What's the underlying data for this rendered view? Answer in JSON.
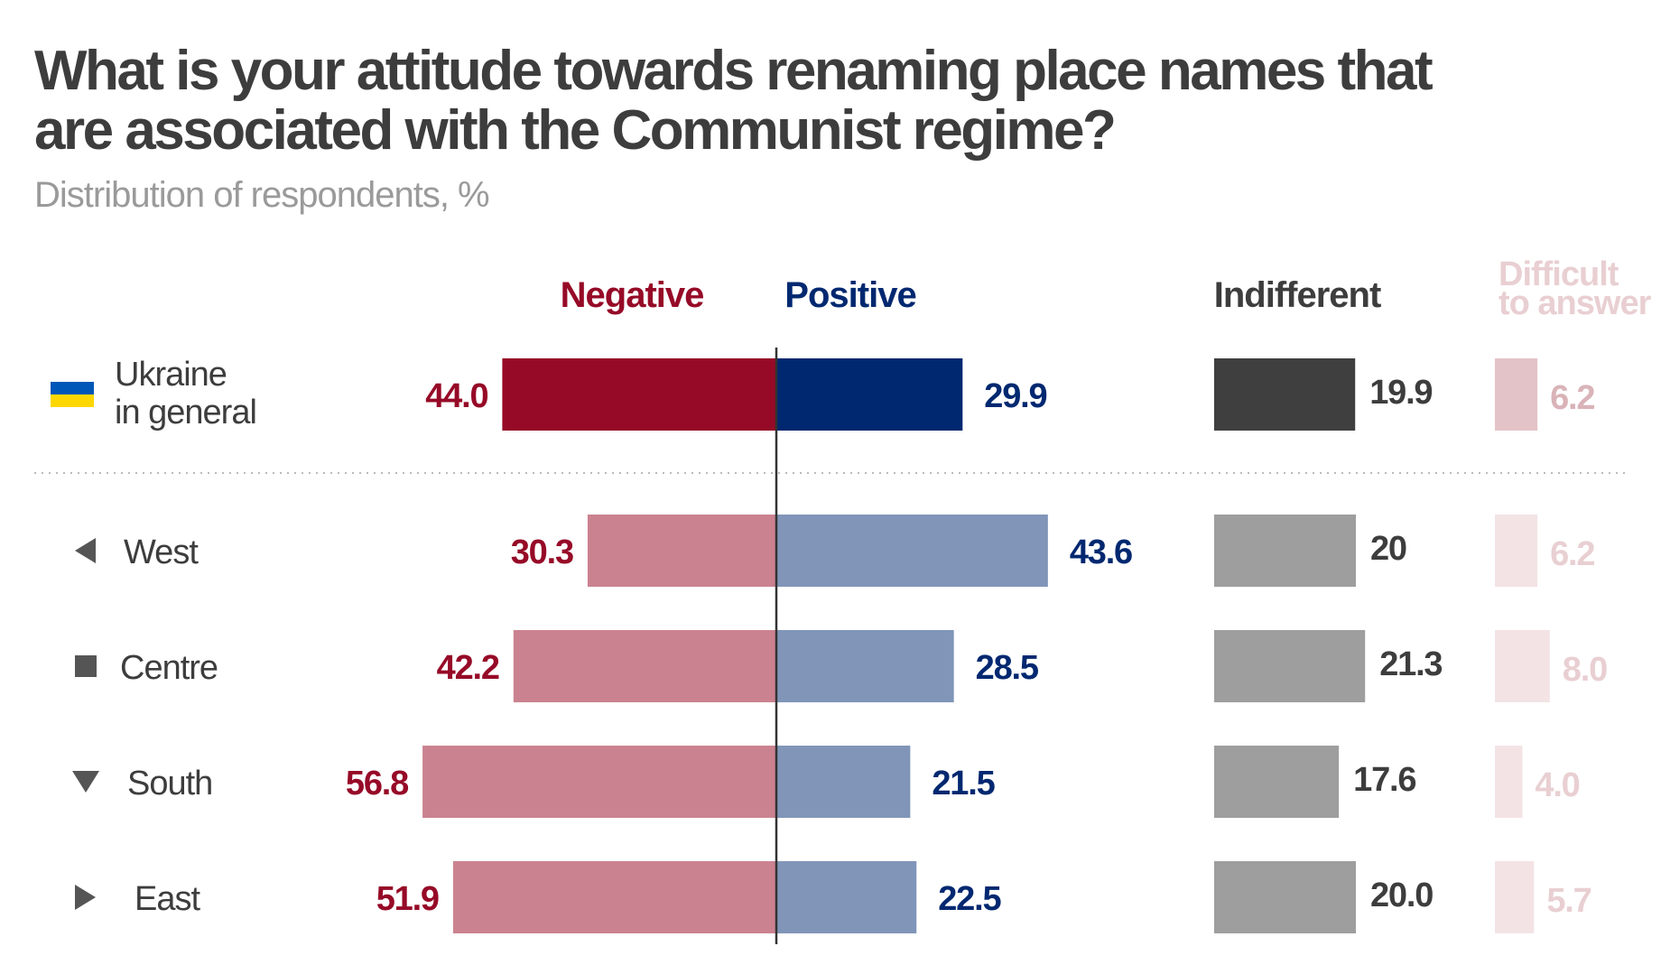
{
  "title": "What is your attitude towards renaming place names that are associated with the Communist regime?",
  "subtitle": "Distribution of respondents, %",
  "chart_data": {
    "type": "bar",
    "title": "What is your attitude towards renaming place names that are associated with the Communist regime?",
    "subtitle": "Distribution of respondents, %",
    "columns": {
      "negative": "Negative",
      "positive": "Positive",
      "indifferent": "Indifferent",
      "difficult_line1": "Difficult",
      "difficult_line2": "to answer"
    },
    "categories": [
      "Ukraine in general",
      "West",
      "Centre",
      "South",
      "East"
    ],
    "category_lines": [
      [
        "Ukraine",
        "in general"
      ],
      [
        "West"
      ],
      [
        "Centre"
      ],
      [
        "South"
      ],
      [
        "East"
      ]
    ],
    "category_icons": [
      "ukraine-flag-icon",
      "triangle-left-icon",
      "square-icon",
      "triangle-down-icon",
      "triangle-right-icon"
    ],
    "series": [
      {
        "name": "Negative",
        "values": [
          44.0,
          30.3,
          42.2,
          56.8,
          51.9
        ],
        "labels": [
          "44.0",
          "30.3",
          "42.2",
          "56.8",
          "51.9"
        ]
      },
      {
        "name": "Positive",
        "values": [
          29.9,
          43.6,
          28.5,
          21.5,
          22.5
        ],
        "labels": [
          "29.9",
          "43.6",
          "28.5",
          "21.5",
          "22.5"
        ]
      },
      {
        "name": "Indifferent",
        "values": [
          19.9,
          20.0,
          21.3,
          17.6,
          20.0
        ],
        "labels": [
          "19.9",
          "20",
          "21.3",
          "17.6",
          "20.0"
        ]
      },
      {
        "name": "Difficult to answer",
        "values": [
          6.2,
          6.2,
          8.0,
          4.0,
          5.7
        ],
        "labels": [
          "6.2",
          "6.2",
          "8.0",
          "4.0",
          "5.7"
        ]
      }
    ],
    "colors": {
      "negative_total": "#960a27",
      "negative_region": "#cb8290",
      "negative_text": "#960a27",
      "positive_total": "#002870",
      "positive_region": "#8095b8",
      "positive_text": "#002870",
      "indifferent_total": "#3f3f3f",
      "indifferent_region": "#9e9e9e",
      "indifferent_text": "#3d3d3d",
      "difficult_total": "#e3c3c7",
      "difficult_region": "#f3e3e5",
      "difficult_text_total": "#d9b3b8",
      "difficult_text_region": "#e9cfd2",
      "label_text": "#3d3d3d",
      "icon": "#555555",
      "flag_blue": "#0057b7",
      "flag_yellow": "#ffd700",
      "axis_line": "#333333",
      "separator": "#bbbbbb"
    },
    "grid": false,
    "legend": "none (column headers above bars)"
  }
}
